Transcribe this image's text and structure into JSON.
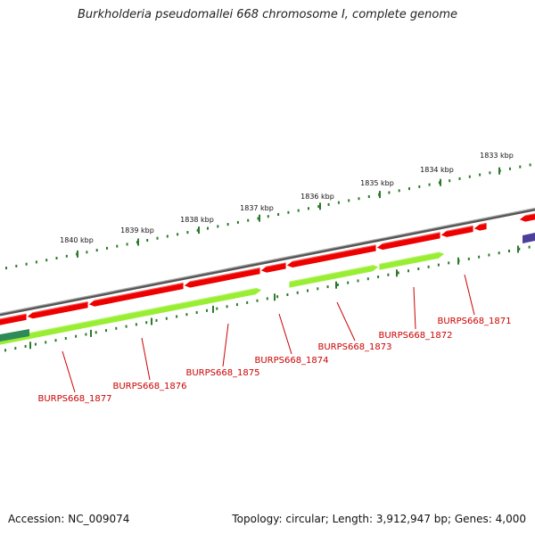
{
  "title": "Burkholderia pseudomallei 668 chromosome I, complete genome",
  "accession_label": "Accession: NC_009074",
  "summary_label": "Topology: circular; Length: 3,912,947 bp; Genes: 4,000",
  "colors": {
    "backbone": "#7f7f7f",
    "forward_cds": "#ee0000",
    "reverse_cds": "#99ee33",
    "other_feature_green": "#2e8b57",
    "other_feature_blue": "#4b3f99",
    "tick": "#2a7a2a",
    "gene_label": "#cc0000",
    "kbp_label": "#111111"
  },
  "kbp_marks": [
    "1840 kbp",
    "1839 kbp",
    "1838 kbp",
    "1837 kbp",
    "1836 kbp",
    "1835 kbp",
    "1834 kbp",
    "1833 kbp"
  ],
  "gene_labels": [
    "BURPS668_1877",
    "BURPS668_1876",
    "BURPS668_1875",
    "BURPS668_1874",
    "BURPS668_1873",
    "BURPS668_1872",
    "BURPS668_1871"
  ]
}
